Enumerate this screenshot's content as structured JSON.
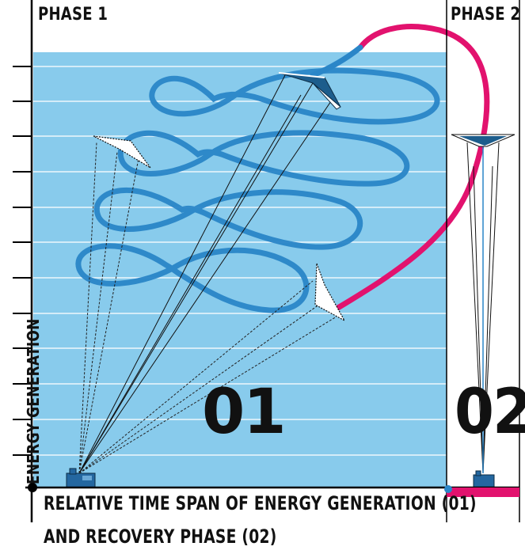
{
  "labels": {
    "phase_1": "PHASE 1",
    "phase_2": "PHASE 2",
    "marker_01": "01",
    "marker_02": "02",
    "y_axis": "ENERGY GENERATION",
    "caption_line_1": "RELATIVE TIME SPAN OF ENERGY GENERATION (01)",
    "caption_line_2": "AND RECOVERY PHASE (02)"
  },
  "colors": {
    "sky_panel": "#88cbec",
    "figure_eight_path": "#2a86c8",
    "recovery_path": "#e2126e",
    "kite_dark": "#1d5d8c",
    "ground_station": "#2467a0",
    "axis": "#000000"
  }
}
